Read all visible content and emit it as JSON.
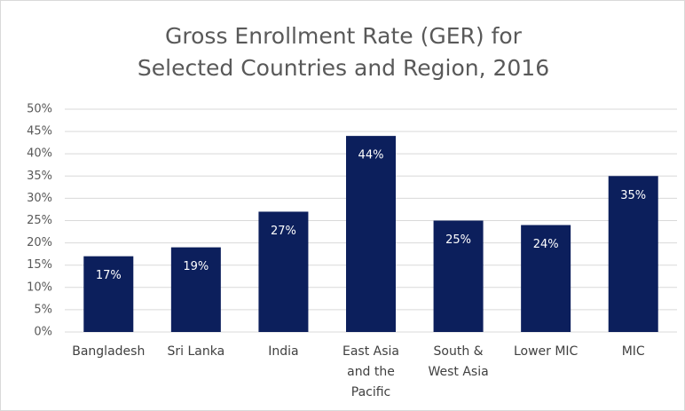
{
  "chart_data": {
    "type": "bar",
    "title": "Gross Enrollment Rate (GER) for Selected Countries and Region, 2016",
    "categories": [
      "Bangladesh",
      "Sri Lanka",
      "India",
      "East Asia and the Pacific",
      "South & West Asia",
      "Lower MIC",
      "MIC"
    ],
    "values": [
      17,
      19,
      27,
      44,
      25,
      24,
      35
    ],
    "value_labels": [
      "17%",
      "19%",
      "27%",
      "44%",
      "25%",
      "24%",
      "35%"
    ],
    "color": "#0c1f5c",
    "ylim": [
      0,
      50
    ],
    "yticks": [
      {
        "value": 0,
        "label": "0%"
      },
      {
        "value": 5,
        "label": "5%"
      },
      {
        "value": 10,
        "label": "10%"
      },
      {
        "value": 15,
        "label": "15%"
      },
      {
        "value": 20,
        "label": "20%"
      },
      {
        "value": 25,
        "label": "25%"
      },
      {
        "value": 30,
        "label": "30%"
      },
      {
        "value": 35,
        "label": "35%"
      },
      {
        "value": 40,
        "label": "40%"
      },
      {
        "value": 45,
        "label": "45%"
      },
      {
        "value": 50,
        "label": "50%"
      }
    ],
    "grid": true
  }
}
